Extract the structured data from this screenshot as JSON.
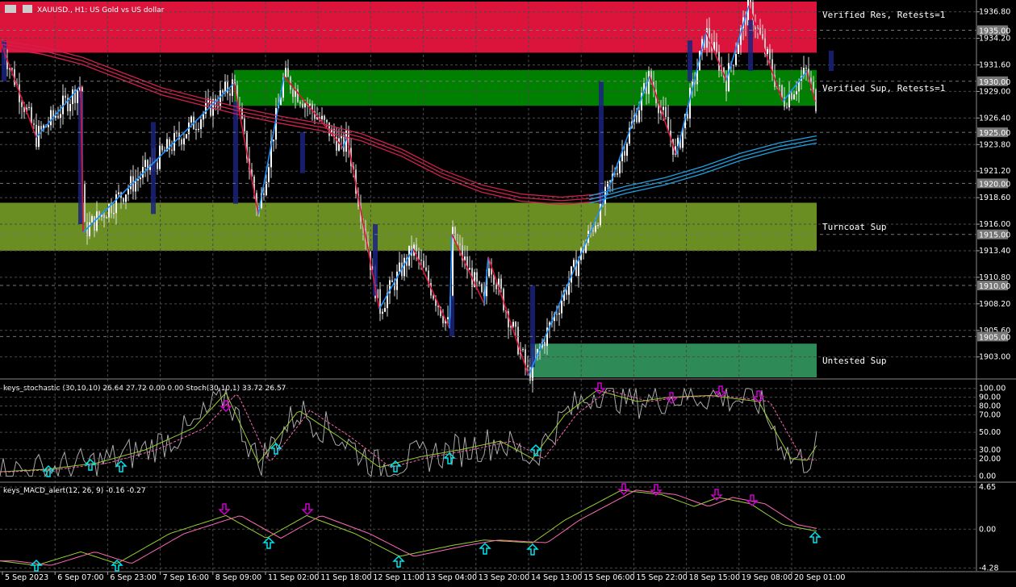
{
  "window": {
    "symbol_title": "XAUUSD., H1:  US Gold vs US dollar"
  },
  "chart_data": [
    {
      "type": "line",
      "panel": "main",
      "title": "XAUUSD., H1:  US Gold vs US dollar",
      "ylim": [
        1901.0,
        1937.8
      ],
      "grid": true,
      "y_ticks": [
        "1936.80",
        "1934.20",
        "1931.60",
        "1929.00",
        "1926.40",
        "1923.80",
        "1921.20",
        "1918.60",
        "1916.00",
        "1913.40",
        "1910.80",
        "1908.20",
        "1905.60",
        "1903.00"
      ],
      "price_tags": [
        "1935.00",
        "1930.00",
        "1925.00",
        "1920.00",
        "1915.00",
        "1910.00",
        "1905.00"
      ],
      "x_ticks": [
        "5 Sep 2023",
        "6 Sep 07:00",
        "6 Sep 23:00",
        "7 Sep 16:00",
        "8 Sep 09:00",
        "11 Sep 02:00",
        "11 Sep 18:00",
        "12 Sep 11:00",
        "13 Sep 04:00",
        "13 Sep 20:00",
        "14 Sep 13:00",
        "15 Sep 06:00",
        "15 Sep 22:00",
        "18 Sep 15:00",
        "19 Sep 08:00",
        "20 Sep 01:00"
      ],
      "zones": [
        {
          "label": "Verified Res, Retests=1",
          "y_from": 1932.8,
          "y_to": 1937.8,
          "color": "#dc143c"
        },
        {
          "label": "Verified Sup, Retests=1",
          "y_from": 1927.6,
          "y_to": 1931.1,
          "color": "#008000"
        },
        {
          "label": "Turncoat Sup",
          "y_from": 1913.4,
          "y_to": 1918.1,
          "color": "#6b8e23"
        },
        {
          "label": "Untested Sup",
          "y_from": 1901.0,
          "y_to": 1904.3,
          "color": "#2e8b57"
        }
      ],
      "zigzag": [
        {
          "x": 0,
          "y": 1934.0
        },
        {
          "x": 45,
          "y": 1924.5
        },
        {
          "x": 100,
          "y": 1929.6
        },
        {
          "x": 103,
          "y": 1915.2
        },
        {
          "x": 290,
          "y": 1929.8
        },
        {
          "x": 320,
          "y": 1917.0
        },
        {
          "x": 352,
          "y": 1930.5
        },
        {
          "x": 425,
          "y": 1923.5
        },
        {
          "x": 430,
          "y": 1924.5
        },
        {
          "x": 470,
          "y": 1907.7
        },
        {
          "x": 512,
          "y": 1913.6
        },
        {
          "x": 557,
          "y": 1905.8
        },
        {
          "x": 560,
          "y": 1915.0
        },
        {
          "x": 600,
          "y": 1908.2
        },
        {
          "x": 605,
          "y": 1912.8
        },
        {
          "x": 655,
          "y": 1901.2
        },
        {
          "x": 750,
          "y": 1918.6
        },
        {
          "x": 805,
          "y": 1930.5
        },
        {
          "x": 838,
          "y": 1922.8
        },
        {
          "x": 875,
          "y": 1934.8
        },
        {
          "x": 900,
          "y": 1930.1
        },
        {
          "x": 928,
          "y": 1937.4
        },
        {
          "x": 970,
          "y": 1928.0
        },
        {
          "x": 1000,
          "y": 1931.0
        },
        {
          "x": 1010,
          "y": 1928.0
        }
      ],
      "series": [
        {
          "name": "",
          "color": "#d02050",
          "values": [
            1933.6,
            1933.0,
            1932.0,
            1930.5,
            1929.0,
            1928.0,
            1927.0,
            1926.2,
            1925.5,
            1924.5,
            1923.0,
            1921.0,
            1919.5,
            1918.6,
            1918.3,
            1918.6
          ]
        },
        {
          "name": "",
          "color": "#1ea0e0",
          "values": [
            1918.4,
            1919.4,
            1920.2,
            1921.3,
            1922.6,
            1923.6,
            1924.3
          ]
        }
      ]
    },
    {
      "type": "line",
      "panel": "stochastic",
      "title": "keys_stochastic (30,10,10) 26.64 27.72 0.00 0.00 Stoch(30,10,1) 33.72 26.57",
      "ylim": [
        -5,
        108
      ],
      "y_ticks": [
        "100.00",
        "90.00",
        "80.00",
        "70.00",
        "50.00",
        "30.00",
        "20.00",
        "0.00"
      ]
    },
    {
      "type": "line",
      "panel": "macd",
      "title": "keys_MACD_alert(12, 26, 9) -0.16 -0.27",
      "ylim": [
        -4.6,
        5.0
      ],
      "y_ticks": [
        "4.65",
        "0.00",
        "-4.28"
      ]
    }
  ],
  "colors": {
    "background": "#000000",
    "bull_candle": "#ffffff",
    "bear_candle": "#c8c8c8",
    "grid": "#4a4a4a",
    "zigzag_up": "#1e90ff",
    "zigzag_down": "#dc143c",
    "arrow_up": "#00e5ee",
    "arrow_down": "#cc00cc"
  }
}
